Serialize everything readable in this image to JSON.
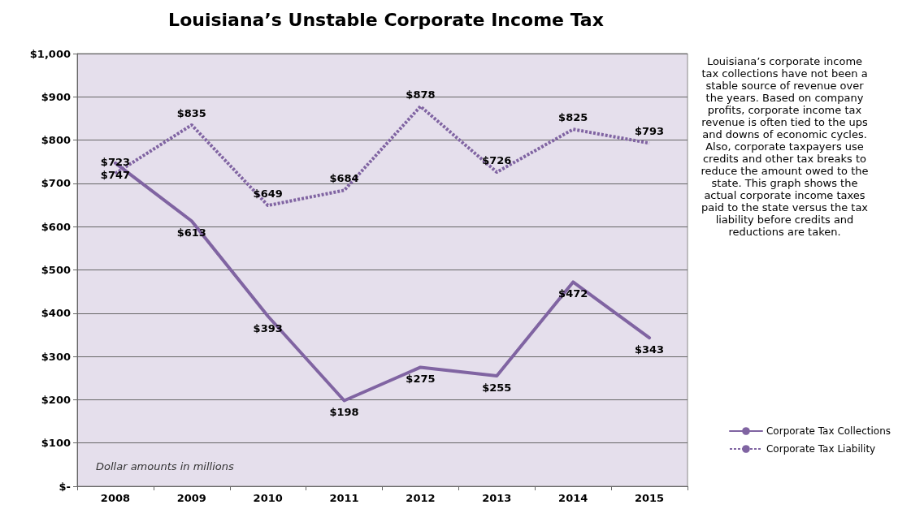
{
  "chart_data": {
    "type": "line",
    "title": "Louisiana’s Unstable Corporate Income Tax",
    "categories": [
      "2008",
      "2009",
      "2010",
      "2011",
      "2012",
      "2013",
      "2014",
      "2015"
    ],
    "series": [
      {
        "name": "Corporate Tax Collections",
        "color": "#8064a2",
        "line_style": "solid",
        "values": [
          747,
          613,
          393,
          198,
          275,
          255,
          472,
          343
        ],
        "value_labels": [
          "$747",
          "$613",
          "$393",
          "$198",
          "$275",
          "$255",
          "$472",
          "$343"
        ]
      },
      {
        "name": "Corporate Tax Liability",
        "color": "#8064a2",
        "line_style": "dotted",
        "values": [
          723,
          835,
          649,
          684,
          878,
          726,
          825,
          793
        ],
        "value_labels": [
          "$723",
          "$835",
          "$649",
          "$684",
          "$878",
          "$726",
          "$825",
          "$793"
        ]
      }
    ],
    "ylim": [
      0,
      1000
    ],
    "yticks": [
      {
        "value": 0,
        "label": "$-"
      },
      {
        "value": 100,
        "label": "$100"
      },
      {
        "value": 200,
        "label": "$200"
      },
      {
        "value": 300,
        "label": "$300"
      },
      {
        "value": 400,
        "label": "$400"
      },
      {
        "value": 500,
        "label": "$500"
      },
      {
        "value": 600,
        "label": "$600"
      },
      {
        "value": 700,
        "label": "$700"
      },
      {
        "value": 800,
        "label": "$800"
      },
      {
        "value": 900,
        "label": "$900"
      },
      {
        "value": 1000,
        "label": "$1,000"
      }
    ],
    "grid": "y",
    "legend": "bottom right",
    "marker": "none",
    "annotations": [
      "Louisiana’s corporate income tax collections have not been a stable source of revenue over the years. Based on company profits, corporate income tax revenue is often tied to the ups and downs of economic cycles. Also, corporate taxpayers use credits and other tax breaks to reduce the amount owed to the state. This graph shows the actual corporate income taxes paid to the state versus the tax liability before credits and reductions are taken.",
      "Dollar amounts in millions"
    ]
  }
}
